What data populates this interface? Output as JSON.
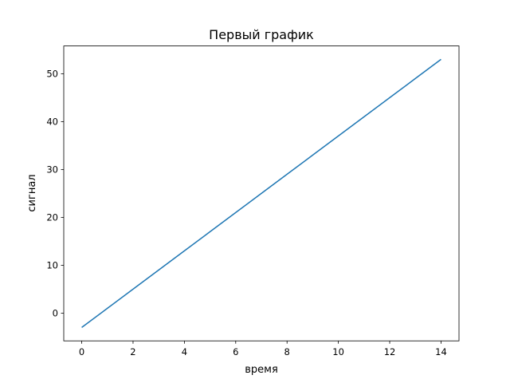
{
  "chart_data": {
    "type": "line",
    "title": "Первый график",
    "xlabel": "время",
    "ylabel": "сигнал",
    "xlim": [
      -0.7,
      14.7
    ],
    "ylim": [
      -5.8,
      55.8
    ],
    "xticks": [
      0,
      2,
      4,
      6,
      8,
      10,
      12,
      14
    ],
    "yticks": [
      0,
      10,
      20,
      30,
      40,
      50
    ],
    "grid": false,
    "series": [
      {
        "color": "#1f77b4",
        "x": [
          0,
          1,
          2,
          3,
          4,
          5,
          6,
          7,
          8,
          9,
          10,
          11,
          12,
          13,
          14
        ],
        "y": [
          -3,
          1,
          5,
          9,
          13,
          17,
          21,
          25,
          29,
          33,
          37,
          41,
          45,
          49,
          53
        ]
      }
    ]
  }
}
